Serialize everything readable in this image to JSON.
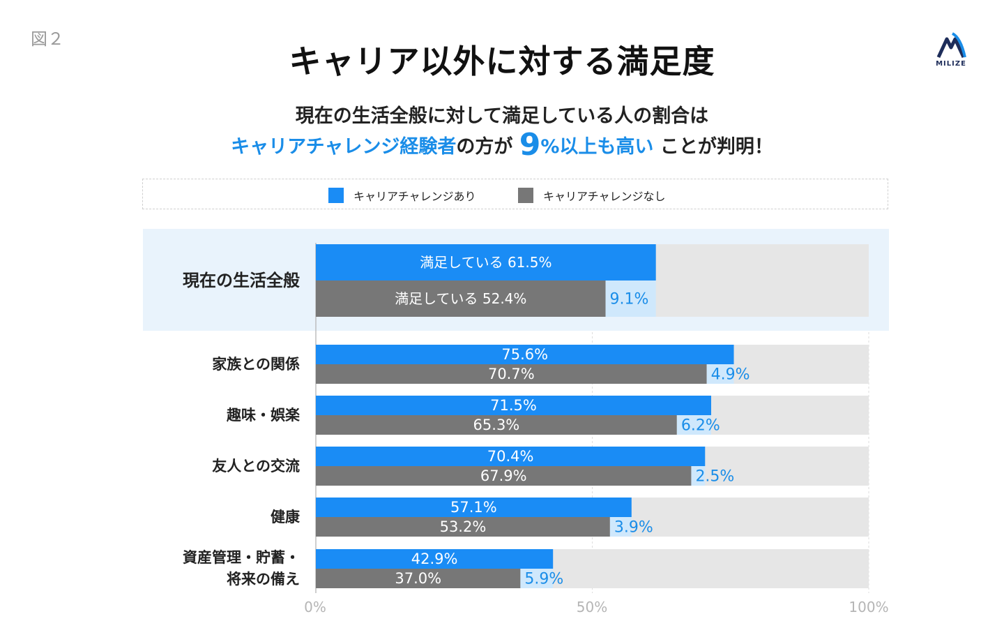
{
  "figure_label": "図２",
  "title": "キャリア以外に対する満足度",
  "subtitle": {
    "line1": "現在の生活全般に対して満足している人の割合は",
    "line2_blue": "キャリアチャレンジ経験者",
    "line2_mid": "の方が",
    "line2_big": "9",
    "line2_pct": "%以上も高い",
    "line2_end": "ことが判明！"
  },
  "logo": {
    "text": "MILIZE"
  },
  "colors": {
    "with": "#1a8cf5",
    "without": "#777777",
    "diff_fill": "#cfe8fc",
    "diff_text": "#1a8de8",
    "track": "#e6e6e6",
    "highlight": "#e9f3fc"
  },
  "legend": {
    "with_label": "キャリアチャレンジあり",
    "without_label": "キャリアチャレンジなし"
  },
  "chart_data": {
    "type": "bar",
    "orientation": "horizontal",
    "title": "キャリア以外に対する満足度",
    "xlim": [
      0,
      100
    ],
    "x_ticks": [
      "0%",
      "50%",
      "100%"
    ],
    "categories": [
      "現在の生活全般",
      "家族との関係",
      "趣味・娯楽",
      "友人との交流",
      "健康",
      "資産管理・貯蓄・将来の備え"
    ],
    "category_lines": [
      [
        "現在の生活全般"
      ],
      [
        "家族との関係"
      ],
      [
        "趣味・娯楽"
      ],
      [
        "友人との交流"
      ],
      [
        "健康"
      ],
      [
        "資産管理・貯蓄・",
        "将来の備え"
      ]
    ],
    "series": [
      {
        "name": "キャリアチャレンジあり",
        "values": [
          61.5,
          75.6,
          71.5,
          70.4,
          57.1,
          42.9
        ]
      },
      {
        "name": "キャリアチャレンジなし",
        "values": [
          52.4,
          70.7,
          65.3,
          67.9,
          53.2,
          37.0
        ]
      }
    ],
    "with_labels": [
      "満足している 61.5%",
      "75.6%",
      "71.5%",
      "70.4%",
      "57.1%",
      "42.9%"
    ],
    "without_labels": [
      "満足している 52.4%",
      "70.7%",
      "65.3%",
      "67.9%",
      "53.2%",
      "37.0%"
    ],
    "differences": [
      9.1,
      4.9,
      6.2,
      2.5,
      3.9,
      5.9
    ],
    "difference_labels": [
      "9.1%",
      "4.9%",
      "6.2%",
      "2.5%",
      "3.9%",
      "5.9%"
    ],
    "highlighted_category": "現在の生活全般"
  }
}
